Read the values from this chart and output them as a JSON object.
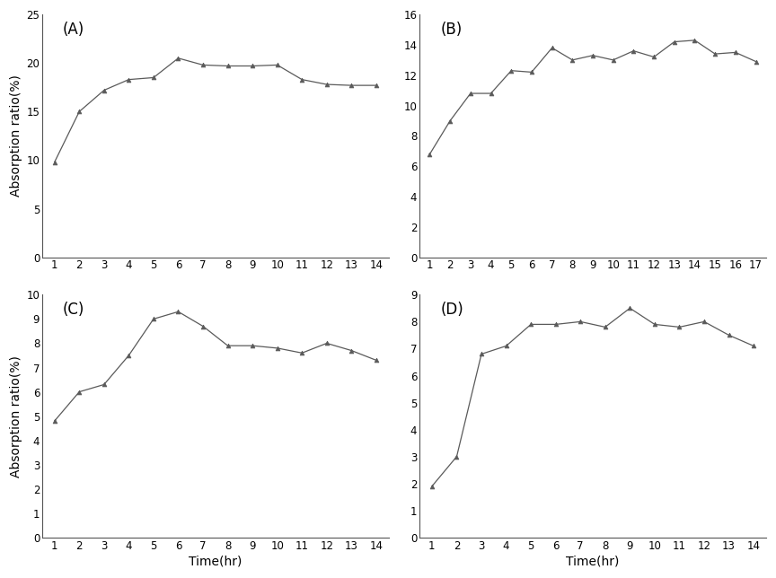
{
  "A": {
    "label": "(A)",
    "x": [
      1,
      2,
      3,
      4,
      5,
      6,
      7,
      8,
      9,
      10,
      11,
      12,
      13,
      14
    ],
    "y": [
      9.8,
      15.0,
      17.2,
      18.3,
      18.5,
      20.5,
      19.8,
      19.7,
      19.7,
      19.8,
      18.3,
      17.8,
      17.7,
      17.7
    ],
    "ylim": [
      0,
      25
    ],
    "yticks": [
      0,
      5,
      10,
      15,
      20,
      25
    ],
    "ytick_labels": [
      "0",
      "5",
      "10",
      "15",
      "20",
      "25"
    ],
    "xticks": [
      1,
      2,
      3,
      4,
      5,
      6,
      7,
      8,
      9,
      10,
      11,
      12,
      13,
      14
    ],
    "xlim": [
      0.5,
      14.5
    ],
    "ylabel": "Absorption ratio(%)",
    "xlabel": ""
  },
  "B": {
    "label": "(B)",
    "x": [
      1,
      2,
      3,
      4,
      5,
      6,
      7,
      8,
      9,
      10,
      11,
      12,
      13,
      14,
      15,
      16,
      17
    ],
    "y": [
      6.8,
      9.0,
      10.8,
      10.8,
      12.3,
      12.2,
      13.8,
      13.0,
      13.3,
      13.0,
      13.6,
      13.2,
      14.2,
      14.3,
      13.4,
      13.5,
      12.9
    ],
    "ylim": [
      0,
      16
    ],
    "yticks": [
      0,
      2,
      4,
      6,
      8,
      10,
      12,
      14,
      16
    ],
    "ytick_labels": [
      "0",
      "2",
      "4",
      "6",
      "8",
      "10",
      "12",
      "14",
      "16"
    ],
    "xticks": [
      1,
      2,
      3,
      4,
      5,
      6,
      7,
      8,
      9,
      10,
      11,
      12,
      13,
      14,
      15,
      16,
      17
    ],
    "xlim": [
      0.5,
      17.5
    ],
    "ylabel": "",
    "xlabel": ""
  },
  "C": {
    "label": "(C)",
    "x": [
      1,
      2,
      3,
      4,
      5,
      6,
      7,
      8,
      9,
      10,
      11,
      12,
      13,
      14
    ],
    "y": [
      4.8,
      6.0,
      6.3,
      7.5,
      9.0,
      9.3,
      8.7,
      7.9,
      7.9,
      7.8,
      7.6,
      8.0,
      7.7,
      7.3
    ],
    "ylim": [
      0,
      10
    ],
    "yticks": [
      0,
      1,
      2,
      3,
      4,
      5,
      6,
      7,
      8,
      9,
      10
    ],
    "ytick_labels": [
      "0",
      "1",
      "2",
      "3",
      "4",
      "5",
      "6",
      "7",
      "8",
      "9",
      "10"
    ],
    "xticks": [
      1,
      2,
      3,
      4,
      5,
      6,
      7,
      8,
      9,
      10,
      11,
      12,
      13,
      14
    ],
    "xlim": [
      0.5,
      14.5
    ],
    "ylabel": "Absorption ratio(%)",
    "xlabel": "Time(hr)"
  },
  "D": {
    "label": "(D)",
    "x": [
      1,
      2,
      3,
      4,
      5,
      6,
      7,
      8,
      9,
      10,
      11,
      12,
      13,
      14
    ],
    "y": [
      1.9,
      3.0,
      6.8,
      7.1,
      7.9,
      7.9,
      8.0,
      7.8,
      8.5,
      7.9,
      7.8,
      8.0,
      7.5,
      7.1
    ],
    "ylim": [
      0,
      9
    ],
    "yticks": [
      0,
      1,
      2,
      3,
      4,
      5,
      6,
      7,
      8,
      9
    ],
    "ytick_labels": [
      "0",
      "1",
      "2",
      "3",
      "4",
      "5",
      "6",
      "7",
      "8",
      "9"
    ],
    "xticks": [
      1,
      2,
      3,
      4,
      5,
      6,
      7,
      8,
      9,
      10,
      11,
      12,
      13,
      14
    ],
    "xlim": [
      0.5,
      14.5
    ],
    "ylabel": "",
    "xlabel": "Time(hr)"
  },
  "line_color": "#5a5a5a",
  "marker": "^",
  "marker_size": 3.5,
  "line_width": 0.9,
  "tick_fontsize": 8.5,
  "axis_label_fontsize": 10,
  "panel_label_fontsize": 12
}
